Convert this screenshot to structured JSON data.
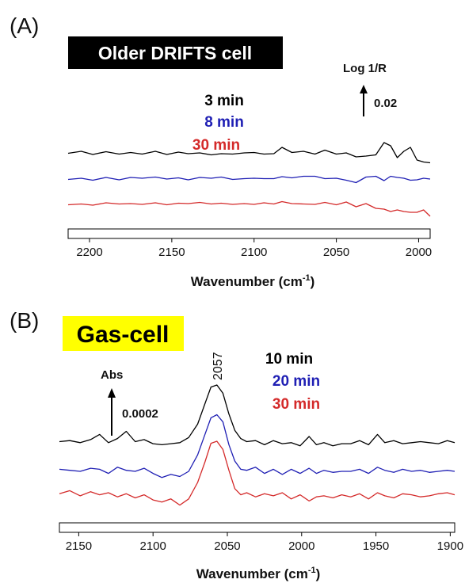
{
  "chart_data": [
    {
      "type": "line",
      "panel_label": "(A)",
      "title": "Older DRIFTS cell",
      "title_style": {
        "background": "#000000",
        "color": "#ffffff"
      },
      "xlabel": "Wavenumber (cm",
      "xlabel_sup": "-1",
      "xlabel_end": ")",
      "xlim": [
        2213,
        1993
      ],
      "x_ticks": [
        2200,
        2150,
        2100,
        2050,
        2000
      ],
      "scale_bar": {
        "label": "Log 1/R",
        "value": "0.02"
      },
      "series": [
        {
          "name": "3 min",
          "color": "#000000",
          "x": [
            2213,
            2205,
            2198,
            2190,
            2182,
            2175,
            2168,
            2160,
            2153,
            2146,
            2140,
            2133,
            2126,
            2120,
            2113,
            2106,
            2100,
            2094,
            2088,
            2083,
            2077,
            2070,
            2063,
            2057,
            2050,
            2044,
            2038,
            2032,
            2026,
            2021,
            2017,
            2013,
            2009,
            2005,
            2001,
            1997,
            1993
          ],
          "y": [
            1.95,
            2.2,
            1.8,
            2.15,
            1.85,
            2.05,
            1.85,
            2.2,
            1.8,
            2.1,
            1.9,
            2.0,
            1.75,
            1.9,
            1.85,
            2.0,
            2.05,
            1.85,
            1.9,
            2.7,
            2.05,
            2.2,
            1.85,
            2.35,
            1.85,
            2.0,
            1.5,
            1.6,
            1.75,
            3.3,
            2.9,
            1.4,
            2.2,
            2.7,
            1.1,
            0.85,
            0.75
          ]
        },
        {
          "name": "8 min",
          "color": "#1f1fb4",
          "x": [
            2213,
            2205,
            2198,
            2190,
            2182,
            2175,
            2168,
            2160,
            2153,
            2146,
            2140,
            2133,
            2126,
            2120,
            2113,
            2106,
            2100,
            2094,
            2088,
            2083,
            2077,
            2070,
            2063,
            2057,
            2050,
            2044,
            2038,
            2032,
            2026,
            2021,
            2017,
            2013,
            2009,
            2005,
            2001,
            1997,
            1993
          ],
          "y": [
            0.95,
            1.1,
            0.85,
            1.2,
            0.9,
            1.2,
            1.1,
            1.25,
            1.0,
            1.15,
            0.9,
            1.2,
            1.1,
            1.25,
            0.95,
            1.05,
            1.1,
            1.05,
            1.05,
            1.3,
            1.15,
            1.35,
            1.35,
            1.05,
            1.1,
            0.85,
            0.55,
            1.25,
            1.35,
            0.8,
            1.35,
            1.2,
            1.1,
            0.85,
            0.9,
            1.1,
            1.0
          ]
        },
        {
          "name": "30 min",
          "color": "#d42a2a",
          "x": [
            2213,
            2205,
            2198,
            2190,
            2182,
            2175,
            2168,
            2160,
            2153,
            2146,
            2140,
            2133,
            2126,
            2120,
            2113,
            2106,
            2100,
            2094,
            2088,
            2083,
            2077,
            2070,
            2063,
            2057,
            2050,
            2044,
            2038,
            2032,
            2026,
            2021,
            2017,
            2013,
            2009,
            2005,
            2001,
            1997,
            1993
          ],
          "y": [
            -0.05,
            0.05,
            -0.1,
            0.2,
            0.05,
            0.1,
            0.0,
            0.2,
            -0.05,
            0.15,
            0.1,
            0.25,
            0.05,
            0.15,
            0.0,
            0.1,
            0.0,
            0.2,
            0.05,
            0.35,
            0.1,
            0.05,
            0.0,
            0.25,
            -0.05,
            0.3,
            -0.3,
            0.1,
            -0.5,
            -0.6,
            -0.9,
            -0.7,
            -0.9,
            -1.0,
            -1.0,
            -0.7,
            -1.5
          ]
        }
      ]
    },
    {
      "type": "line",
      "panel_label": "(B)",
      "title": "Gas-cell",
      "title_style": {
        "background": "#ffff00",
        "color": "#000000"
      },
      "xlabel": "Wavenumber (cm",
      "xlabel_sup": "-1",
      "xlabel_end": ")",
      "xlim": [
        2163,
        1897
      ],
      "x_ticks": [
        2150,
        2100,
        2050,
        2000,
        1950,
        1900
      ],
      "scale_bar": {
        "label": "Abs",
        "value": "0.0002"
      },
      "annotations": [
        {
          "text": "2057",
          "x": 2057
        }
      ],
      "series": [
        {
          "name": "10 min",
          "color": "#000000",
          "x": [
            2163,
            2156,
            2149,
            2142,
            2136,
            2130,
            2124,
            2118,
            2112,
            2106,
            2100,
            2094,
            2088,
            2082,
            2076,
            2070,
            2065,
            2061,
            2057,
            2053,
            2049,
            2045,
            2041,
            2037,
            2031,
            2025,
            2019,
            2013,
            2007,
            2001,
            1995,
            1990,
            1985,
            1979,
            1973,
            1967,
            1961,
            1955,
            1949,
            1944,
            1938,
            1932,
            1926,
            1920,
            1914,
            1908,
            1902,
            1897
          ],
          "y": [
            0.5,
            0.6,
            0.4,
            0.7,
            1.2,
            0.4,
            0.8,
            1.5,
            0.5,
            0.7,
            0.3,
            0.2,
            0.3,
            0.4,
            0.9,
            2.2,
            4.2,
            5.8,
            6.0,
            5.2,
            3.2,
            1.6,
            0.8,
            0.5,
            0.6,
            0.2,
            0.6,
            0.3,
            0.4,
            0.1,
            1.0,
            0.2,
            0.4,
            0.1,
            0.3,
            0.3,
            0.6,
            0.2,
            1.2,
            0.4,
            0.6,
            0.3,
            0.4,
            0.5,
            0.4,
            0.3,
            0.6,
            0.4
          ]
        },
        {
          "name": "20 min",
          "color": "#1f1fb4",
          "x": [
            2163,
            2156,
            2149,
            2142,
            2136,
            2130,
            2124,
            2118,
            2112,
            2106,
            2100,
            2094,
            2088,
            2082,
            2076,
            2070,
            2065,
            2061,
            2057,
            2053,
            2049,
            2045,
            2041,
            2037,
            2031,
            2025,
            2019,
            2013,
            2007,
            2001,
            1995,
            1990,
            1985,
            1979,
            1973,
            1967,
            1961,
            1955,
            1949,
            1944,
            1938,
            1932,
            1926,
            1920,
            1914,
            1908,
            1902,
            1897
          ],
          "y": [
            -0.8,
            -0.9,
            -1.0,
            -0.7,
            -0.8,
            -1.2,
            -0.6,
            -0.9,
            -1.0,
            -0.7,
            -1.2,
            -1.6,
            -1.3,
            -1.5,
            -1.0,
            0.6,
            2.6,
            4.2,
            4.5,
            3.8,
            1.6,
            0.0,
            -0.8,
            -0.9,
            -0.6,
            -1.2,
            -0.8,
            -1.3,
            -0.8,
            -1.2,
            -0.7,
            -1.2,
            -0.9,
            -1.1,
            -1.0,
            -1.0,
            -0.8,
            -1.2,
            -0.6,
            -0.9,
            -1.1,
            -0.8,
            -1.0,
            -0.9,
            -1.1,
            -1.0,
            -0.9,
            -1.0
          ]
        },
        {
          "name": "30 min",
          "color": "#d42a2a",
          "x": [
            2163,
            2156,
            2149,
            2142,
            2136,
            2130,
            2124,
            2118,
            2112,
            2106,
            2100,
            2094,
            2088,
            2082,
            2076,
            2070,
            2065,
            2061,
            2057,
            2053,
            2049,
            2045,
            2041,
            2037,
            2031,
            2025,
            2019,
            2013,
            2007,
            2001,
            1995,
            1990,
            1985,
            1979,
            1973,
            1967,
            1961,
            1955,
            1949,
            1944,
            1938,
            1932,
            1926,
            1920,
            1914,
            1908,
            1902,
            1897
          ],
          "y": [
            -2.1,
            -1.8,
            -2.3,
            -1.9,
            -2.2,
            -2.0,
            -2.4,
            -2.1,
            -2.5,
            -2.2,
            -2.7,
            -2.9,
            -2.6,
            -3.2,
            -2.6,
            -1.0,
            1.0,
            2.8,
            3.0,
            2.2,
            0.2,
            -1.6,
            -2.2,
            -2.0,
            -2.4,
            -2.1,
            -2.3,
            -2.0,
            -2.6,
            -2.2,
            -2.8,
            -2.4,
            -2.3,
            -2.5,
            -2.2,
            -2.4,
            -2.1,
            -2.6,
            -2.0,
            -2.3,
            -2.5,
            -2.1,
            -2.2,
            -2.4,
            -2.3,
            -2.1,
            -2.0,
            -2.2
          ]
        }
      ]
    }
  ]
}
